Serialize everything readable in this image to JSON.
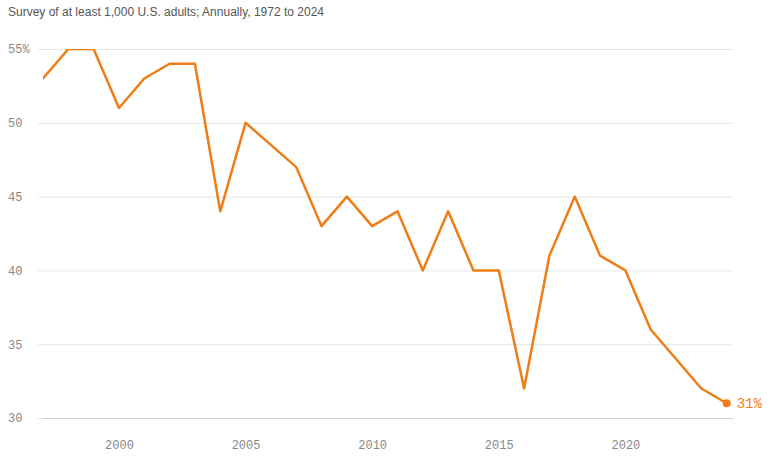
{
  "chart_data": {
    "type": "line",
    "subtitle": "Survey of at least 1,000 U.S. adults; Annually, 1972 to 2024",
    "x": [
      1997,
      1998,
      1999,
      2000,
      2001,
      2002,
      2003,
      2004,
      2005,
      2007,
      2008,
      2009,
      2010,
      2011,
      2012,
      2013,
      2014,
      2015,
      2016,
      2017,
      2018,
      2019,
      2020,
      2021,
      2023,
      2024
    ],
    "values": [
      53,
      55,
      55,
      51,
      53,
      54,
      54,
      44,
      50,
      47,
      43,
      45,
      43,
      44,
      40,
      44,
      40,
      40,
      32,
      41,
      45,
      41,
      40,
      36,
      32,
      31
    ],
    "color": "#ef7d16",
    "xlim": [
      1997,
      2024.25
    ],
    "xticks": [
      2000,
      2005,
      2010,
      2015,
      2020
    ],
    "ylim": [
      30,
      55
    ],
    "yticks": [
      30,
      35,
      40,
      45,
      50,
      {
        "value": 55,
        "label": "55%"
      }
    ],
    "grid": true,
    "annotations": [
      {
        "text": "31%",
        "x": 2024,
        "y": 31
      }
    ]
  }
}
